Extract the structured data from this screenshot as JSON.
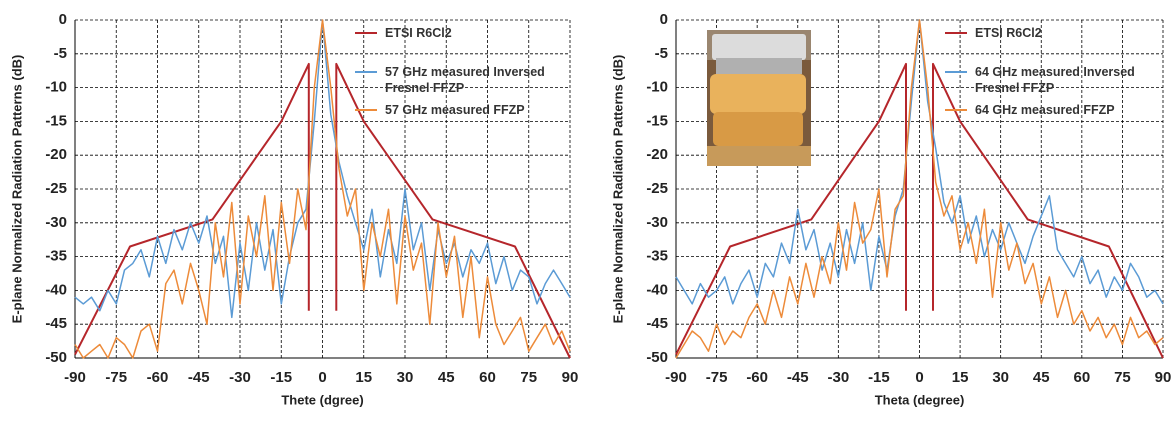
{
  "chart_data": [
    {
      "type": "line",
      "ylabel": "E-plane Normalized Radiation Patterns (dB)",
      "xlabel": "Thete (dgree)",
      "xlim": [
        -90,
        90
      ],
      "xticks": [
        -90,
        -75,
        -60,
        -45,
        -30,
        -15,
        0,
        15,
        30,
        45,
        60,
        75,
        90
      ],
      "ylim": [
        -50,
        0
      ],
      "yticks": [
        0,
        -5,
        -10,
        -15,
        -20,
        -25,
        -30,
        -35,
        -40,
        -45,
        -50
      ],
      "grid": true,
      "x": [
        -90,
        -87,
        -84,
        -81,
        -78,
        -75,
        -72,
        -69,
        -66,
        -63,
        -60,
        -57,
        -54,
        -51,
        -48,
        -45,
        -42,
        -39,
        -36,
        -33,
        -30,
        -27,
        -24,
        -21,
        -18,
        -15,
        -12,
        -9,
        -6,
        -3,
        0,
        3,
        6,
        9,
        12,
        15,
        18,
        21,
        24,
        27,
        30,
        33,
        36,
        39,
        42,
        45,
        48,
        51,
        54,
        57,
        60,
        63,
        66,
        69,
        72,
        75,
        78,
        81,
        84,
        87,
        90
      ],
      "series": [
        {
          "name": "ETSI R6Cl2",
          "color": "#b5262b",
          "x": [
            -90,
            -70,
            -40,
            -15,
            -5,
            -5,
            0,
            5,
            5,
            15,
            40,
            70,
            90
          ],
          "values": [
            -49.5,
            -33.5,
            -29.5,
            -15,
            -6.5,
            -43,
            null,
            -43,
            -6.5,
            -15,
            -29.5,
            -33.5,
            -50
          ]
        },
        {
          "name": "57 GHz measured Inversed Fresnel FFZP",
          "color": "#5b9bd5",
          "values": [
            -41,
            -42,
            -41,
            -43,
            -40,
            -42,
            -37,
            -36,
            -34,
            -38,
            -32,
            -36,
            -31,
            -34,
            -30,
            -33,
            -29,
            -36,
            -32,
            -44,
            -33,
            -40,
            -30,
            -37,
            -31,
            -42,
            -35,
            -30,
            -28,
            -15,
            0,
            -14,
            -21,
            -26,
            -30,
            -34,
            -28,
            -38,
            -31,
            -36,
            -25,
            -34,
            -30,
            -40,
            -31,
            -36,
            -33,
            -38,
            -34,
            -36,
            -33,
            -39,
            -35,
            -40,
            -37,
            -38,
            -42,
            -39,
            -37,
            -39,
            -41
          ]
        },
        {
          "name": "57 GHz measured FFZP",
          "color": "#ed8b3a",
          "values": [
            -48,
            -50,
            -49,
            -48,
            -50,
            -47,
            -48,
            -50,
            -46,
            -45,
            -49,
            -39,
            -37,
            -42,
            -36,
            -40,
            -45,
            -30,
            -38,
            -27,
            -42,
            -29,
            -35,
            -26,
            -40,
            -27,
            -36,
            -25,
            -31,
            -10,
            0,
            -10,
            -22,
            -29,
            -25,
            -40,
            -30,
            -35,
            -28,
            -42,
            -29,
            -37,
            -33,
            -45,
            -30,
            -38,
            -32,
            -44,
            -35,
            -47,
            -38,
            -45,
            -48,
            -46,
            -44,
            -49,
            -47,
            -45,
            -48,
            -46,
            -49
          ]
        }
      ]
    },
    {
      "type": "line",
      "ylabel": "E-plane Normalized Radiation Patterns (dB)",
      "xlabel": "Theta (degree)",
      "xlim": [
        -90,
        90
      ],
      "xticks": [
        -90,
        -75,
        -60,
        -45,
        -30,
        -15,
        0,
        15,
        30,
        45,
        60,
        75,
        90
      ],
      "ylim": [
        -50,
        0
      ],
      "yticks": [
        0,
        -5,
        -10,
        -15,
        -20,
        -25,
        -30,
        -35,
        -40,
        -45,
        -50
      ],
      "grid": true,
      "x": [
        -90,
        -87,
        -84,
        -81,
        -78,
        -75,
        -72,
        -69,
        -66,
        -63,
        -60,
        -57,
        -54,
        -51,
        -48,
        -45,
        -42,
        -39,
        -36,
        -33,
        -30,
        -27,
        -24,
        -21,
        -18,
        -15,
        -12,
        -9,
        -6,
        -3,
        0,
        3,
        6,
        9,
        12,
        15,
        18,
        21,
        24,
        27,
        30,
        33,
        36,
        39,
        42,
        45,
        48,
        51,
        54,
        57,
        60,
        63,
        66,
        69,
        72,
        75,
        78,
        81,
        84,
        87,
        90
      ],
      "series": [
        {
          "name": "ETSI R6Cl2",
          "color": "#b5262b",
          "x": [
            -90,
            -70,
            -40,
            -15,
            -5,
            -5,
            0,
            5,
            5,
            15,
            40,
            70,
            90
          ],
          "values": [
            -49.5,
            -33.5,
            -29.5,
            -15,
            -6.5,
            -43,
            null,
            -43,
            -6.5,
            -15,
            -29.5,
            -33.5,
            -50
          ]
        },
        {
          "name": "64 GHz measured Inversed Fresnel FFZP",
          "color": "#5b9bd5",
          "values": [
            -38,
            -40,
            -42,
            -39,
            -41,
            -40,
            -38,
            -42,
            -39,
            -37,
            -41,
            -36,
            -38,
            -33,
            -36,
            -28,
            -34,
            -31,
            -37,
            -33,
            -38,
            -31,
            -36,
            -30,
            -40,
            -32,
            -37,
            -29,
            -25,
            -12,
            0,
            -12,
            -19,
            -27,
            -30,
            -26,
            -33,
            -29,
            -35,
            -31,
            -34,
            -30,
            -33,
            -36,
            -32,
            -29,
            -26,
            -34,
            -36,
            -38,
            -35,
            -39,
            -37,
            -41,
            -38,
            -40,
            -36,
            -38,
            -41,
            -40,
            -42
          ]
        },
        {
          "name": "64 GHz measured FFZP",
          "color": "#ed8b3a",
          "values": [
            -50,
            -48,
            -46,
            -47,
            -49,
            -45,
            -48,
            -46,
            -47,
            -44,
            -42,
            -45,
            -40,
            -44,
            -38,
            -42,
            -36,
            -41,
            -35,
            -39,
            -30,
            -37,
            -27,
            -33,
            -31,
            -25,
            -38,
            -28,
            -26,
            -10,
            0,
            -10,
            -24,
            -29,
            -26,
            -34,
            -30,
            -36,
            -28,
            -41,
            -30,
            -37,
            -33,
            -39,
            -36,
            -42,
            -38,
            -44,
            -40,
            -45,
            -43,
            -46,
            -44,
            -47,
            -45,
            -48,
            -44,
            -47,
            -46,
            -48,
            -47
          ]
        }
      ]
    }
  ]
}
